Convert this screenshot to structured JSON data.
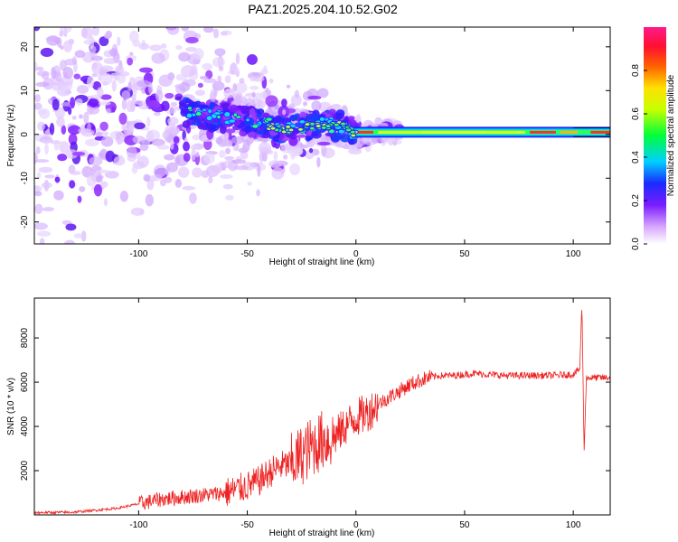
{
  "title": "PAZ1.2025.204.10.52.G02",
  "colors": {
    "snr_line": "#ee2222",
    "spectrogram_ridge": "#ff2a3a",
    "frame": "#000000"
  },
  "chart_data": [
    {
      "type": "heatmap",
      "xlabel": "Height of straight line (km)",
      "ylabel": "Frequency (Hz)",
      "xlim": [
        -148,
        117
      ],
      "ylim": [
        -25,
        24.5
      ],
      "xticks": [
        -100,
        -50,
        0,
        50,
        100
      ],
      "xtick_labels": [
        "-100",
        "-50",
        "0",
        "50",
        "100"
      ],
      "yticks": [
        -20,
        -10,
        0,
        10,
        20
      ],
      "ytick_labels": [
        "-20",
        "-10",
        "0",
        "10",
        "20"
      ],
      "grid": false,
      "colormap": "rainbow (purple-blue-cyan-green-yellow-red-magenta)",
      "colorbar": {
        "label": "Normalized spectral amplitude",
        "range": [
          0,
          1
        ],
        "ticks": [
          0.0,
          0.2,
          0.4,
          0.6,
          0.8
        ],
        "tick_labels": [
          "0.0",
          "0.2",
          "0.4",
          "0.6",
          "0.8"
        ]
      },
      "ridge": {
        "x": [
          -148,
          -120,
          -100,
          -80,
          -60,
          -50,
          -40,
          -30,
          -20,
          -10,
          -5,
          0,
          10,
          25,
          50,
          75,
          90,
          100,
          105,
          110,
          117
        ],
        "frequency": [
          7,
          6,
          6,
          5,
          4,
          3,
          2,
          1,
          2,
          2,
          2,
          0,
          0.5,
          0.5,
          0.5,
          0.5,
          0.5,
          0.5,
          1,
          0,
          0
        ]
      }
    },
    {
      "type": "line",
      "xlabel": "Height of straight line (km)",
      "ylabel": "SNR (10 * v/v)",
      "xlim": [
        -148,
        117
      ],
      "ylim": [
        0,
        9800
      ],
      "xticks": [
        -100,
        -50,
        0,
        50,
        100
      ],
      "xtick_labels": [
        "-100",
        "-50",
        "0",
        "50",
        "100"
      ],
      "yticks": [
        2000,
        4000,
        6000,
        8000
      ],
      "ytick_labels": [
        "2000",
        "4000",
        "6000",
        "8000"
      ],
      "grid": false,
      "series": [
        {
          "x": [
            -148,
            -130,
            -110,
            -100,
            -90,
            -80,
            -70,
            -60,
            -50,
            -45,
            -40,
            -35,
            -30,
            -25,
            -20,
            -15,
            -12,
            -10,
            -5,
            0,
            5,
            10,
            15,
            20,
            25,
            30,
            35,
            40,
            45,
            50,
            55,
            60,
            70,
            80,
            90,
            100,
            103,
            104,
            105,
            106,
            108,
            112,
            117
          ],
          "values": [
            100,
            120,
            300,
            500,
            700,
            800,
            900,
            1000,
            1300,
            1500,
            1900,
            2200,
            2300,
            2700,
            3100,
            3400,
            3400,
            3500,
            4000,
            4400,
            4600,
            5000,
            5300,
            5600,
            5900,
            6100,
            6250,
            6300,
            6300,
            6350,
            6400,
            6350,
            6300,
            6300,
            6300,
            6350,
            6600,
            9600,
            2800,
            6200,
            6200,
            6200,
            6200
          ]
        }
      ]
    }
  ]
}
